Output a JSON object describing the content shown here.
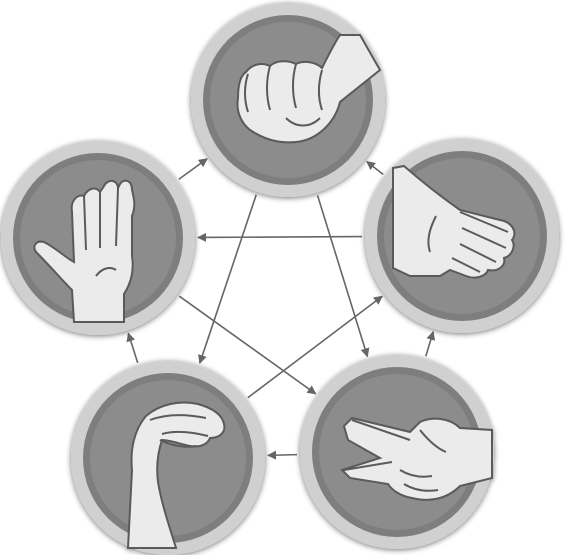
{
  "nodes": [
    {
      "id": "rock",
      "icon": "rock-fist-icon"
    },
    {
      "id": "paper",
      "icon": "paper-hand-icon"
    },
    {
      "id": "scissors",
      "icon": "scissors-hand-icon"
    },
    {
      "id": "lizard",
      "icon": "lizard-hand-icon"
    },
    {
      "id": "spock",
      "icon": "spock-hand-icon"
    }
  ],
  "edges": [
    {
      "from": "rock",
      "to": "scissors"
    },
    {
      "from": "rock",
      "to": "lizard"
    },
    {
      "from": "paper",
      "to": "rock"
    },
    {
      "from": "paper",
      "to": "spock"
    },
    {
      "from": "scissors",
      "to": "paper"
    },
    {
      "from": "scissors",
      "to": "lizard"
    },
    {
      "from": "lizard",
      "to": "paper"
    },
    {
      "from": "lizard",
      "to": "spock"
    },
    {
      "from": "spock",
      "to": "rock"
    },
    {
      "from": "spock",
      "to": "scissors"
    }
  ],
  "colors": {
    "ring": "#cfcfcf",
    "fill": "#7e7e7e",
    "inner": "#8c8c8c",
    "hand": "#ebebeb",
    "arrow": "#666666"
  }
}
